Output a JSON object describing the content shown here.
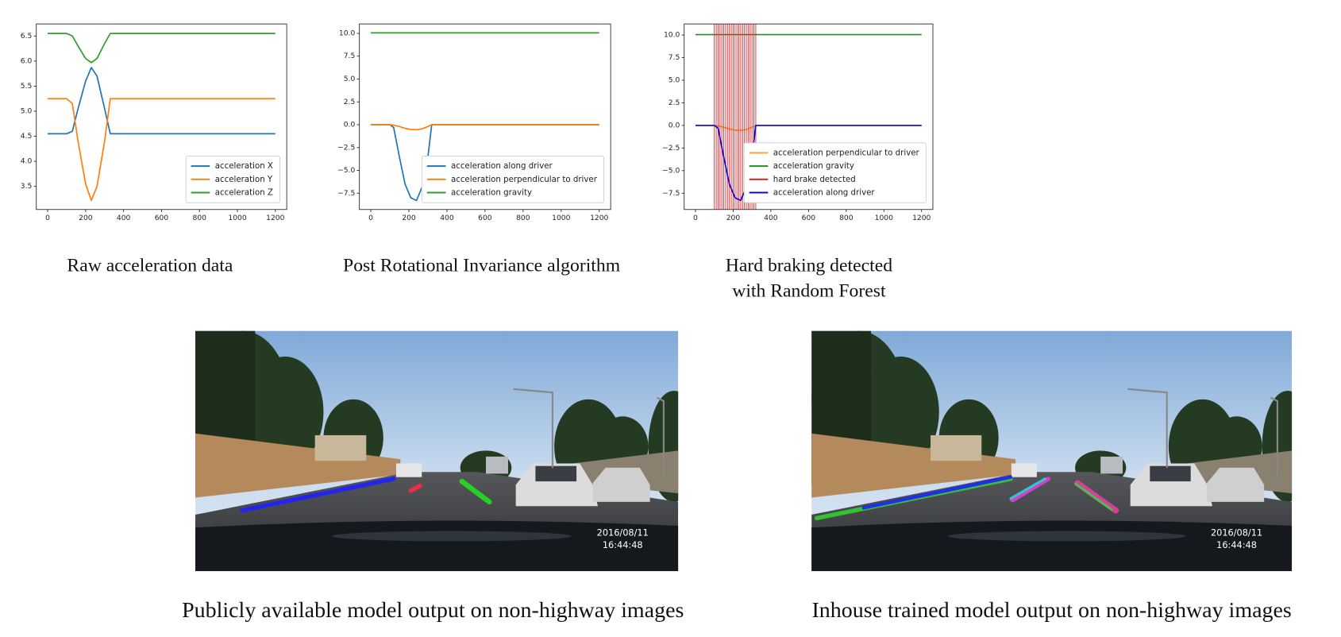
{
  "chart_data": [
    {
      "type": "line",
      "caption": [
        "Raw acceleration data"
      ],
      "x": [
        0,
        100,
        130,
        160,
        200,
        230,
        260,
        300,
        330,
        400,
        600,
        800,
        1000,
        1200
      ],
      "series": [
        {
          "name": "acceleration X",
          "color": "#1f77b4",
          "values": [
            4.55,
            4.55,
            4.6,
            5.05,
            5.6,
            5.87,
            5.7,
            5.05,
            4.55,
            4.55,
            4.55,
            4.55,
            4.55,
            4.55
          ]
        },
        {
          "name": "acceleration Y",
          "color": "#ff7f0e",
          "values": [
            5.25,
            5.25,
            5.15,
            4.4,
            3.55,
            3.22,
            3.5,
            4.4,
            5.25,
            5.25,
            5.25,
            5.25,
            5.25,
            5.25
          ]
        },
        {
          "name": "acceleration Z",
          "color": "#2ca02c",
          "values": [
            6.55,
            6.55,
            6.5,
            6.3,
            6.05,
            5.97,
            6.05,
            6.35,
            6.55,
            6.55,
            6.55,
            6.55,
            6.55,
            6.55
          ]
        }
      ],
      "xlim": [
        -60,
        1260
      ],
      "xticks": [
        0,
        200,
        400,
        600,
        800,
        1000,
        1200
      ],
      "ylim": [
        3.04,
        6.74
      ],
      "yticks": [
        3.5,
        {
          "value": 4,
          "label": "4.0"
        },
        4.5,
        {
          "value": 5,
          "label": "5.0"
        },
        5.5,
        {
          "value": 6,
          "label": "6.0"
        },
        6.5
      ],
      "legend": "lower right"
    },
    {
      "type": "line",
      "caption": [
        "Post Rotational Invariance algorithm"
      ],
      "x": [
        0,
        100,
        120,
        150,
        180,
        210,
        240,
        270,
        300,
        320,
        400,
        600,
        800,
        1000,
        1200
      ],
      "series": [
        {
          "name": "acceleration along driver",
          "color": "#1f77b4",
          "values": [
            0,
            0,
            -0.3,
            -3.5,
            -6.5,
            -8.0,
            -8.3,
            -6.8,
            -3.5,
            0,
            0,
            0,
            0,
            0,
            0
          ]
        },
        {
          "name": "acceleration perpendicular to driver",
          "color": "#ff7f0e",
          "values": [
            0,
            0,
            -0.05,
            -0.2,
            -0.4,
            -0.52,
            -0.55,
            -0.45,
            -0.2,
            0,
            0,
            0,
            0,
            0,
            0
          ]
        },
        {
          "name": "acceleration gravity",
          "color": "#2ca02c",
          "values": [
            10.05,
            10.05,
            10.05,
            10.05,
            10.05,
            10.05,
            10.05,
            10.05,
            10.05,
            10.05,
            10.05,
            10.05,
            10.05,
            10.05,
            10.05
          ]
        }
      ],
      "xlim": [
        -60,
        1260
      ],
      "xticks": [
        0,
        200,
        400,
        600,
        800,
        1000,
        1200
      ],
      "ylim": [
        -9.28,
        11.03
      ],
      "yticks": [
        {
          "value": -7.5,
          "label": "−7.5"
        },
        {
          "value": -5,
          "label": "−5.0"
        },
        {
          "value": -2.5,
          "label": "−2.5"
        },
        {
          "value": 0,
          "label": "0.0"
        },
        2.5,
        {
          "value": 5,
          "label": "5.0"
        },
        7.5,
        {
          "value": 10,
          "label": "10.0"
        }
      ],
      "legend": "lower right"
    },
    {
      "type": "line",
      "caption": [
        "Hard braking detected",
        "with Random Forest"
      ],
      "x": [
        0,
        100,
        120,
        150,
        180,
        210,
        240,
        270,
        300,
        320,
        400,
        600,
        800,
        1000,
        1200
      ],
      "series": [
        {
          "name": "acceleration perpendicular to driver",
          "color": "#ff9f2a",
          "values": [
            0,
            0,
            -0.05,
            -0.2,
            -0.4,
            -0.52,
            -0.55,
            -0.45,
            -0.2,
            0,
            0,
            0,
            0,
            0,
            0
          ]
        },
        {
          "name": "acceleration gravity",
          "color": "#2a8a2a",
          "values": [
            10.05,
            10.05,
            10.05,
            10.05,
            10.05,
            10.05,
            10.05,
            10.05,
            10.05,
            10.05,
            10.05,
            10.05,
            10.05,
            10.05,
            10.05
          ]
        },
        {
          "name": "hard brake detected",
          "color": "#e8161b",
          "type": "vline",
          "x": [
            100,
            110,
            120,
            130,
            140,
            150,
            160,
            170,
            180,
            190,
            200,
            210,
            220,
            230,
            240,
            250,
            260,
            270,
            280,
            290,
            300,
            310,
            320
          ]
        },
        {
          "name": "acceleration along driver",
          "color": "#0b0bd6",
          "values": [
            0,
            0,
            -0.3,
            -3.5,
            -6.5,
            -8.0,
            -8.3,
            -6.8,
            -3.5,
            0,
            0,
            0,
            0,
            0,
            0
          ]
        }
      ],
      "xlim": [
        -60,
        1260
      ],
      "xticks": [
        0,
        200,
        400,
        600,
        800,
        1000,
        1200
      ],
      "ylim": [
        -9.3,
        11.23
      ],
      "yticks": [
        {
          "value": -7.5,
          "label": "−7.5"
        },
        {
          "value": -5,
          "label": "−5.0"
        },
        {
          "value": -2.5,
          "label": "−2.5"
        },
        {
          "value": 0,
          "label": "0.0"
        },
        2.5,
        {
          "value": 5,
          "label": "5.0"
        },
        7.5,
        {
          "value": 10,
          "label": "10.0"
        }
      ],
      "legend": "lower right"
    }
  ],
  "photos": [
    {
      "caption": "Publicly available model output on non-highway images",
      "date": "2016/08/11",
      "time": "16:44:48"
    },
    {
      "caption": "Inhouse trained model output on non-highway images",
      "date": "2016/08/11",
      "time": "16:44:48"
    }
  ]
}
